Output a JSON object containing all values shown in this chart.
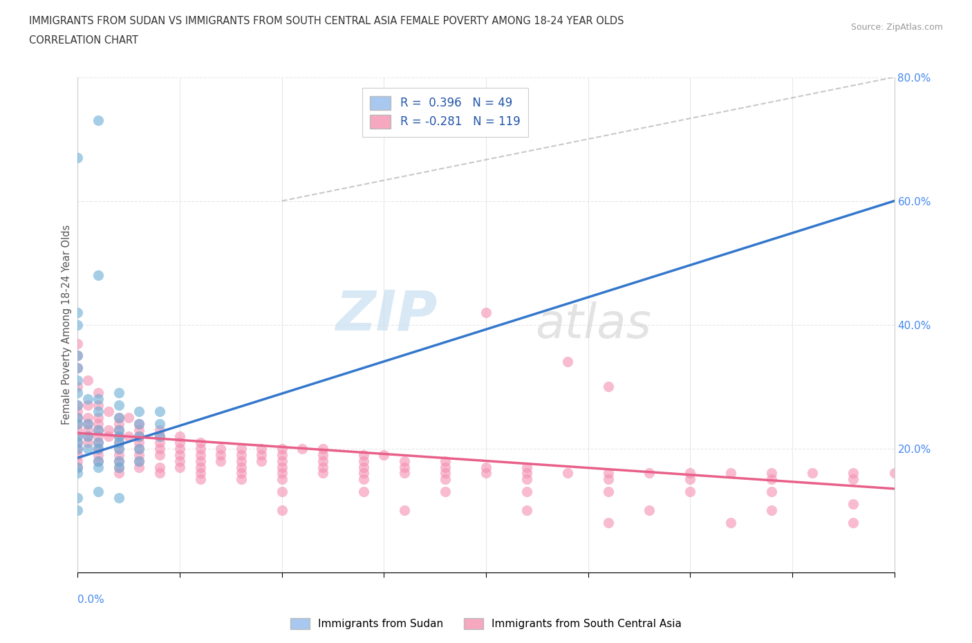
{
  "title_line1": "IMMIGRANTS FROM SUDAN VS IMMIGRANTS FROM SOUTH CENTRAL ASIA FEMALE POVERTY AMONG 18-24 YEAR OLDS",
  "title_line2": "CORRELATION CHART",
  "source_text": "Source: ZipAtlas.com",
  "ylabel": "Female Poverty Among 18-24 Year Olds",
  "sudan_color": "#6aaed6",
  "sca_color": "#f48fb1",
  "sudan_line_color": "#3377cc",
  "sca_line_color": "#e8608a",
  "dash_color": "#bbbbbb",
  "xlim": [
    0.0,
    0.4
  ],
  "ylim": [
    0.0,
    0.8
  ],
  "yticks": [
    0.0,
    0.2,
    0.4,
    0.6,
    0.8
  ],
  "xticks": [
    0.0,
    0.05,
    0.1,
    0.15,
    0.2,
    0.25,
    0.3,
    0.35,
    0.4
  ],
  "watermark_zip": "ZIP",
  "watermark_atlas": "atlas",
  "background_color": "#ffffff",
  "grid_color": "#e8e8e8",
  "sudan_line_x": [
    0.0,
    0.4
  ],
  "sudan_line_y": [
    0.185,
    0.6
  ],
  "sca_line_x": [
    0.0,
    0.4
  ],
  "sca_line_y": [
    0.225,
    0.135
  ],
  "dash_line_x": [
    0.1,
    0.4
  ],
  "dash_line_y": [
    0.6,
    0.8
  ],
  "sudan_scatter": [
    [
      0.0,
      0.67
    ],
    [
      0.01,
      0.73
    ],
    [
      0.0,
      0.42
    ],
    [
      0.0,
      0.4
    ],
    [
      0.0,
      0.35
    ],
    [
      0.0,
      0.33
    ],
    [
      0.0,
      0.31
    ],
    [
      0.0,
      0.29
    ],
    [
      0.0,
      0.27
    ],
    [
      0.005,
      0.28
    ],
    [
      0.01,
      0.48
    ],
    [
      0.0,
      0.25
    ],
    [
      0.0,
      0.24
    ],
    [
      0.005,
      0.24
    ],
    [
      0.01,
      0.28
    ],
    [
      0.01,
      0.26
    ],
    [
      0.02,
      0.29
    ],
    [
      0.02,
      0.27
    ],
    [
      0.0,
      0.22
    ],
    [
      0.0,
      0.21
    ],
    [
      0.005,
      0.22
    ],
    [
      0.01,
      0.23
    ],
    [
      0.02,
      0.25
    ],
    [
      0.02,
      0.23
    ],
    [
      0.02,
      0.22
    ],
    [
      0.03,
      0.26
    ],
    [
      0.03,
      0.24
    ],
    [
      0.0,
      0.2
    ],
    [
      0.005,
      0.2
    ],
    [
      0.01,
      0.21
    ],
    [
      0.01,
      0.2
    ],
    [
      0.02,
      0.21
    ],
    [
      0.02,
      0.2
    ],
    [
      0.03,
      0.22
    ],
    [
      0.03,
      0.2
    ],
    [
      0.04,
      0.26
    ],
    [
      0.04,
      0.24
    ],
    [
      0.04,
      0.22
    ],
    [
      0.0,
      0.17
    ],
    [
      0.0,
      0.16
    ],
    [
      0.01,
      0.18
    ],
    [
      0.01,
      0.17
    ],
    [
      0.02,
      0.18
    ],
    [
      0.02,
      0.17
    ],
    [
      0.03,
      0.18
    ],
    [
      0.0,
      0.12
    ],
    [
      0.0,
      0.1
    ],
    [
      0.01,
      0.13
    ],
    [
      0.02,
      0.12
    ]
  ],
  "sca_scatter": [
    [
      0.0,
      0.37
    ],
    [
      0.0,
      0.35
    ],
    [
      0.0,
      0.33
    ],
    [
      0.0,
      0.3
    ],
    [
      0.005,
      0.31
    ],
    [
      0.01,
      0.29
    ],
    [
      0.0,
      0.27
    ],
    [
      0.0,
      0.26
    ],
    [
      0.005,
      0.27
    ],
    [
      0.01,
      0.27
    ],
    [
      0.015,
      0.26
    ],
    [
      0.0,
      0.25
    ],
    [
      0.005,
      0.25
    ],
    [
      0.01,
      0.25
    ],
    [
      0.02,
      0.25
    ],
    [
      0.025,
      0.25
    ],
    [
      0.0,
      0.24
    ],
    [
      0.005,
      0.24
    ],
    [
      0.01,
      0.24
    ],
    [
      0.02,
      0.24
    ],
    [
      0.03,
      0.24
    ],
    [
      0.0,
      0.23
    ],
    [
      0.005,
      0.23
    ],
    [
      0.01,
      0.23
    ],
    [
      0.015,
      0.23
    ],
    [
      0.02,
      0.23
    ],
    [
      0.03,
      0.23
    ],
    [
      0.04,
      0.23
    ],
    [
      0.0,
      0.22
    ],
    [
      0.005,
      0.22
    ],
    [
      0.01,
      0.22
    ],
    [
      0.015,
      0.22
    ],
    [
      0.02,
      0.22
    ],
    [
      0.025,
      0.22
    ],
    [
      0.03,
      0.22
    ],
    [
      0.04,
      0.22
    ],
    [
      0.05,
      0.22
    ],
    [
      0.0,
      0.21
    ],
    [
      0.005,
      0.21
    ],
    [
      0.01,
      0.21
    ],
    [
      0.02,
      0.21
    ],
    [
      0.03,
      0.21
    ],
    [
      0.04,
      0.21
    ],
    [
      0.05,
      0.21
    ],
    [
      0.06,
      0.21
    ],
    [
      0.0,
      0.2
    ],
    [
      0.01,
      0.2
    ],
    [
      0.02,
      0.2
    ],
    [
      0.03,
      0.2
    ],
    [
      0.04,
      0.2
    ],
    [
      0.05,
      0.2
    ],
    [
      0.06,
      0.2
    ],
    [
      0.07,
      0.2
    ],
    [
      0.08,
      0.2
    ],
    [
      0.09,
      0.2
    ],
    [
      0.1,
      0.2
    ],
    [
      0.11,
      0.2
    ],
    [
      0.12,
      0.2
    ],
    [
      0.0,
      0.19
    ],
    [
      0.01,
      0.19
    ],
    [
      0.02,
      0.19
    ],
    [
      0.03,
      0.19
    ],
    [
      0.04,
      0.19
    ],
    [
      0.05,
      0.19
    ],
    [
      0.06,
      0.19
    ],
    [
      0.07,
      0.19
    ],
    [
      0.08,
      0.19
    ],
    [
      0.09,
      0.19
    ],
    [
      0.1,
      0.19
    ],
    [
      0.12,
      0.19
    ],
    [
      0.14,
      0.19
    ],
    [
      0.15,
      0.19
    ],
    [
      0.0,
      0.18
    ],
    [
      0.01,
      0.18
    ],
    [
      0.02,
      0.18
    ],
    [
      0.03,
      0.18
    ],
    [
      0.05,
      0.18
    ],
    [
      0.06,
      0.18
    ],
    [
      0.07,
      0.18
    ],
    [
      0.08,
      0.18
    ],
    [
      0.09,
      0.18
    ],
    [
      0.1,
      0.18
    ],
    [
      0.12,
      0.18
    ],
    [
      0.14,
      0.18
    ],
    [
      0.16,
      0.18
    ],
    [
      0.18,
      0.18
    ],
    [
      0.0,
      0.17
    ],
    [
      0.02,
      0.17
    ],
    [
      0.03,
      0.17
    ],
    [
      0.04,
      0.17
    ],
    [
      0.05,
      0.17
    ],
    [
      0.06,
      0.17
    ],
    [
      0.08,
      0.17
    ],
    [
      0.1,
      0.17
    ],
    [
      0.12,
      0.17
    ],
    [
      0.14,
      0.17
    ],
    [
      0.16,
      0.17
    ],
    [
      0.18,
      0.17
    ],
    [
      0.2,
      0.17
    ],
    [
      0.22,
      0.17
    ],
    [
      0.02,
      0.16
    ],
    [
      0.04,
      0.16
    ],
    [
      0.06,
      0.16
    ],
    [
      0.08,
      0.16
    ],
    [
      0.1,
      0.16
    ],
    [
      0.12,
      0.16
    ],
    [
      0.14,
      0.16
    ],
    [
      0.16,
      0.16
    ],
    [
      0.18,
      0.16
    ],
    [
      0.2,
      0.16
    ],
    [
      0.22,
      0.16
    ],
    [
      0.24,
      0.16
    ],
    [
      0.26,
      0.16
    ],
    [
      0.28,
      0.16
    ],
    [
      0.3,
      0.16
    ],
    [
      0.32,
      0.16
    ],
    [
      0.34,
      0.16
    ],
    [
      0.36,
      0.16
    ],
    [
      0.38,
      0.16
    ],
    [
      0.4,
      0.16
    ],
    [
      0.06,
      0.15
    ],
    [
      0.08,
      0.15
    ],
    [
      0.1,
      0.15
    ],
    [
      0.14,
      0.15
    ],
    [
      0.18,
      0.15
    ],
    [
      0.22,
      0.15
    ],
    [
      0.26,
      0.15
    ],
    [
      0.3,
      0.15
    ],
    [
      0.34,
      0.15
    ],
    [
      0.38,
      0.15
    ],
    [
      0.2,
      0.42
    ],
    [
      0.24,
      0.34
    ],
    [
      0.26,
      0.3
    ],
    [
      0.1,
      0.13
    ],
    [
      0.14,
      0.13
    ],
    [
      0.18,
      0.13
    ],
    [
      0.22,
      0.13
    ],
    [
      0.26,
      0.13
    ],
    [
      0.3,
      0.13
    ],
    [
      0.34,
      0.13
    ],
    [
      0.38,
      0.11
    ],
    [
      0.1,
      0.1
    ],
    [
      0.16,
      0.1
    ],
    [
      0.22,
      0.1
    ],
    [
      0.28,
      0.1
    ],
    [
      0.34,
      0.1
    ],
    [
      0.26,
      0.08
    ],
    [
      0.32,
      0.08
    ],
    [
      0.38,
      0.08
    ]
  ]
}
